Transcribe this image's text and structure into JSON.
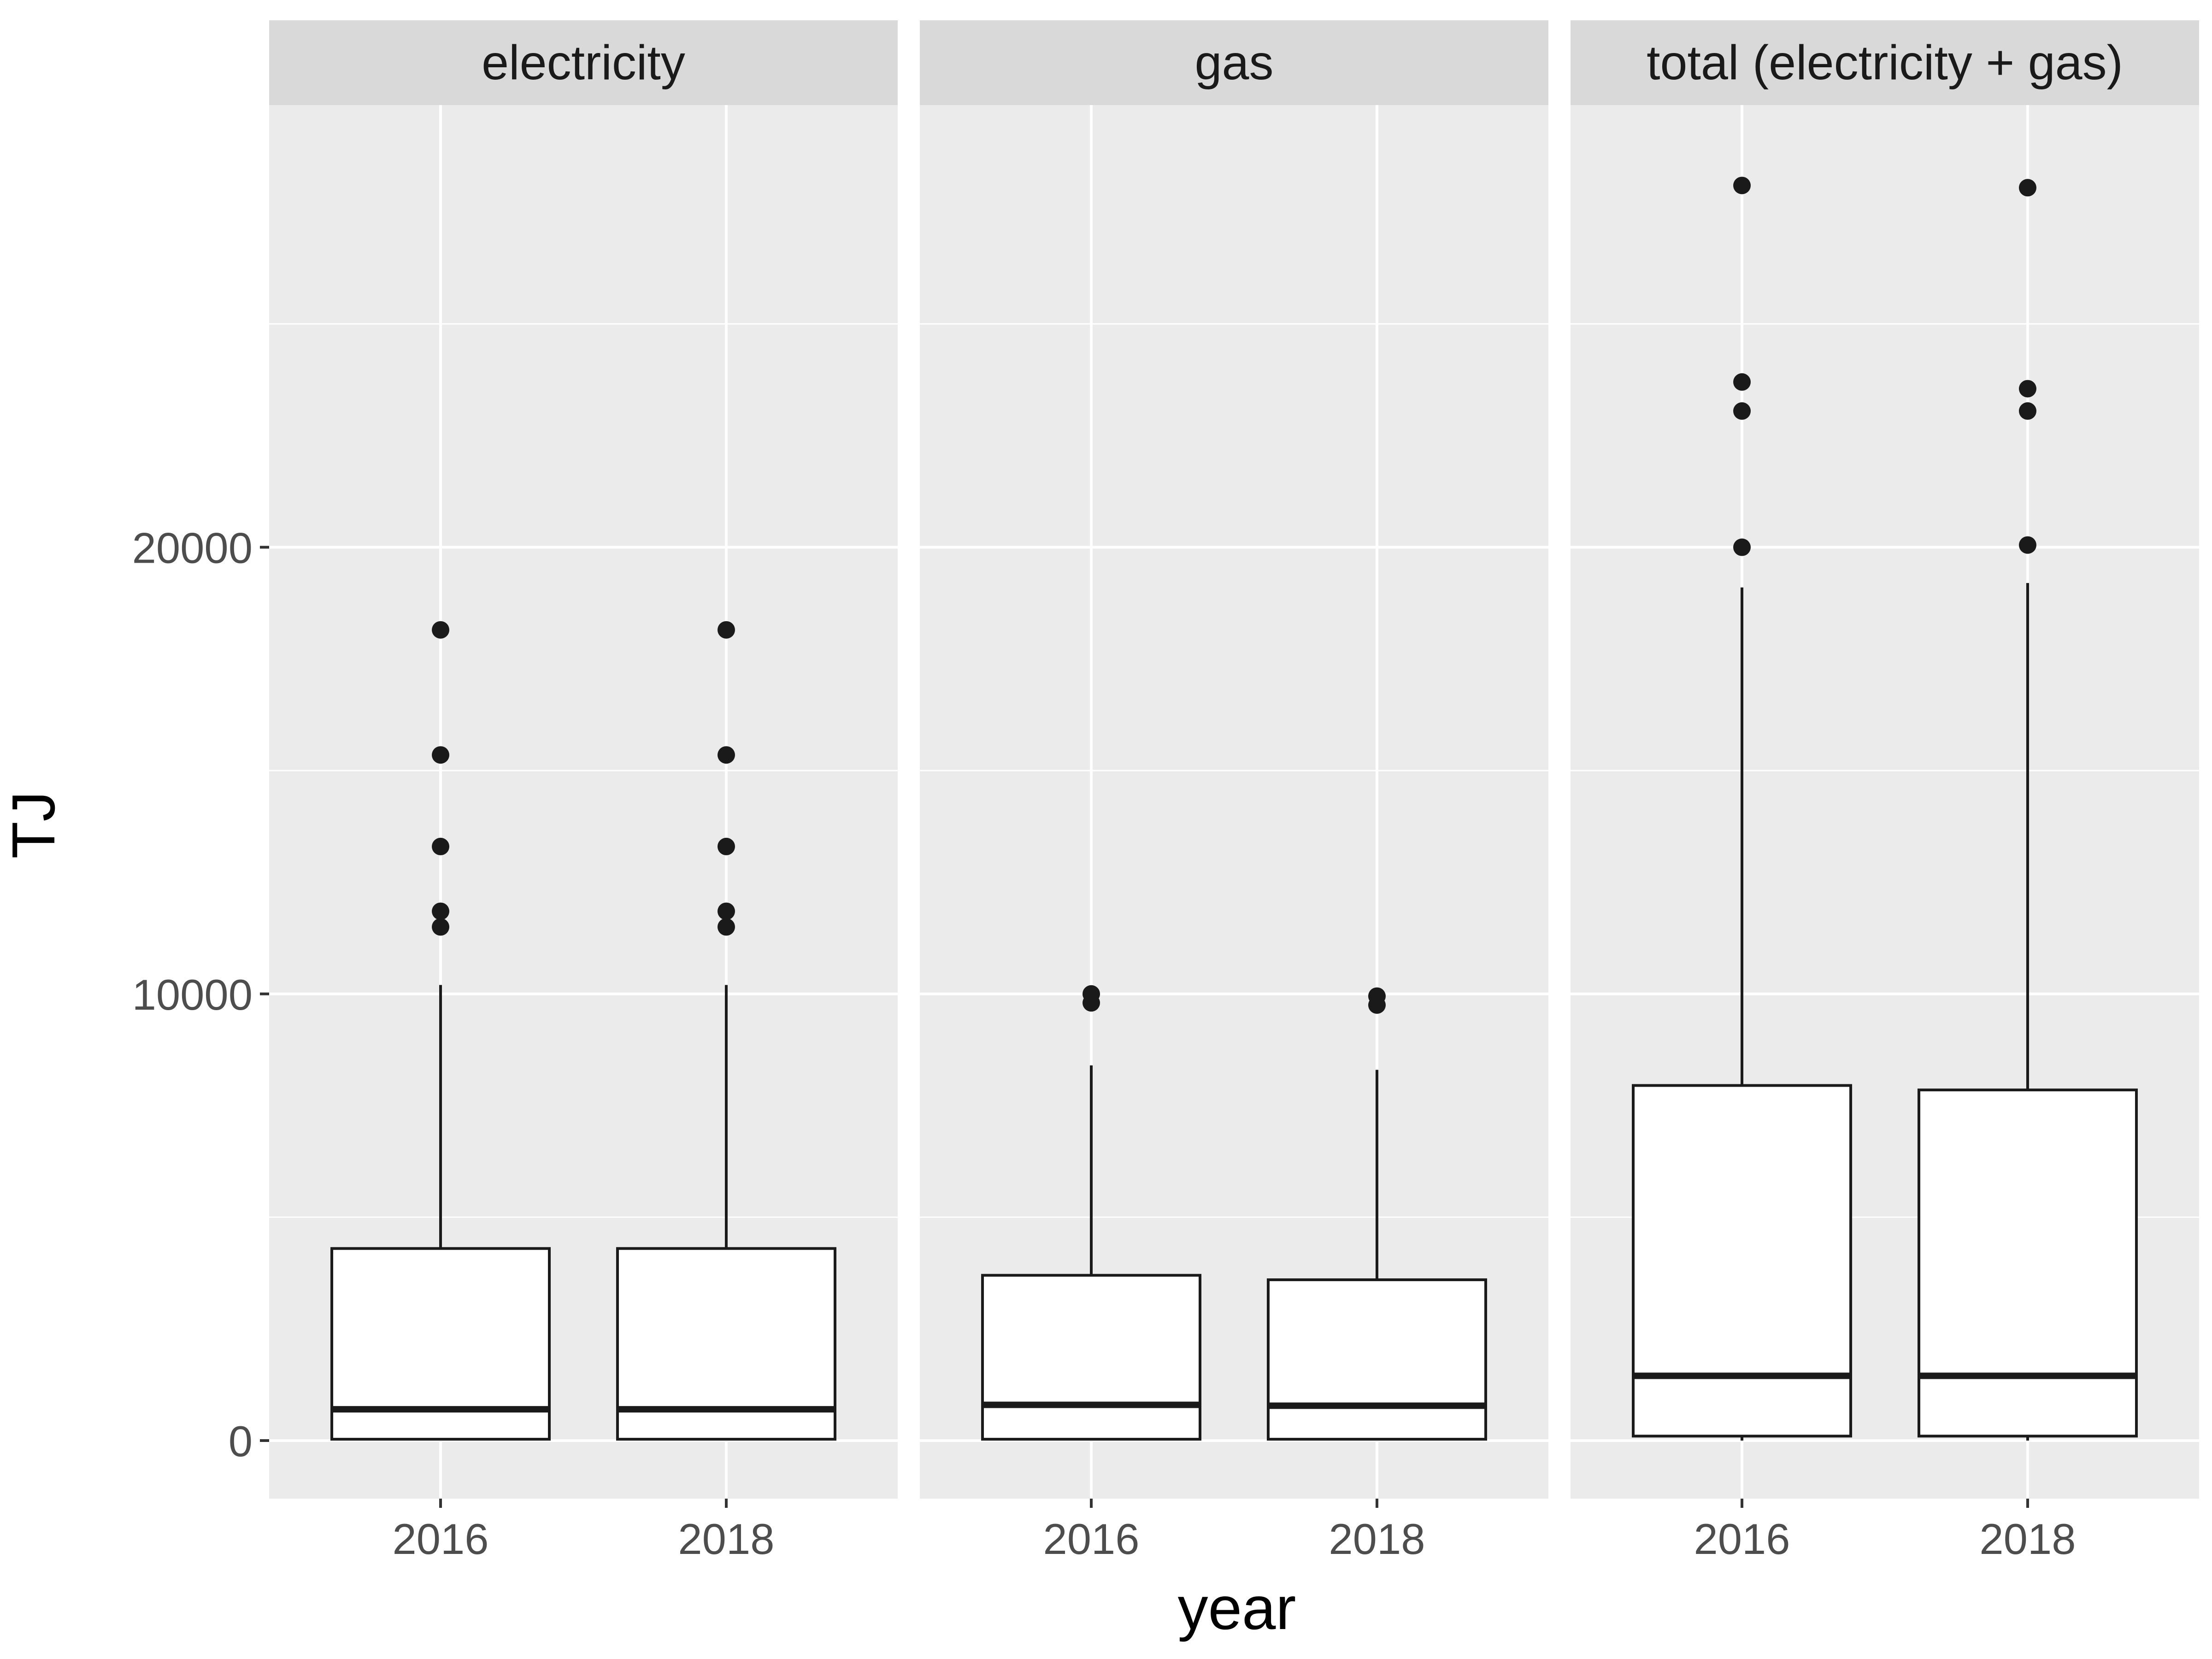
{
  "chart_data": {
    "type": "boxplot",
    "facet_by": "energy type",
    "xlabel": "year",
    "ylabel": "TJ",
    "ylim": [
      -1300,
      29900
    ],
    "y_ticks": [
      0,
      10000,
      20000
    ],
    "grid": true,
    "facets": [
      {
        "label": "electricity",
        "groups": [
          {
            "x": "2016",
            "whisker_low": 0,
            "q1": 30,
            "median": 700,
            "q3": 4300,
            "whisker_high": 10200,
            "outliers": [
              11500,
              11850,
              13300,
              15350,
              18150
            ]
          },
          {
            "x": "2018",
            "whisker_low": 0,
            "q1": 30,
            "median": 700,
            "q3": 4300,
            "whisker_high": 10200,
            "outliers": [
              11500,
              11850,
              13300,
              15350,
              18150
            ]
          }
        ]
      },
      {
        "label": "gas",
        "groups": [
          {
            "x": "2016",
            "whisker_low": 0,
            "q1": 30,
            "median": 800,
            "q3": 3700,
            "whisker_high": 8400,
            "outliers": [
              9800,
              10000
            ]
          },
          {
            "x": "2018",
            "whisker_low": 0,
            "q1": 30,
            "median": 780,
            "q3": 3600,
            "whisker_high": 8300,
            "outliers": [
              9750,
              9950
            ]
          }
        ]
      },
      {
        "label": "total (electricity + gas)",
        "groups": [
          {
            "x": "2016",
            "whisker_low": 0,
            "q1": 100,
            "median": 1450,
            "q3": 7950,
            "whisker_high": 19100,
            "outliers": [
              20000,
              23050,
              23700,
              28100
            ]
          },
          {
            "x": "2018",
            "whisker_low": 0,
            "q1": 100,
            "median": 1450,
            "q3": 7850,
            "whisker_high": 19200,
            "outliers": [
              20050,
              23050,
              23550,
              28050
            ]
          }
        ]
      }
    ]
  }
}
